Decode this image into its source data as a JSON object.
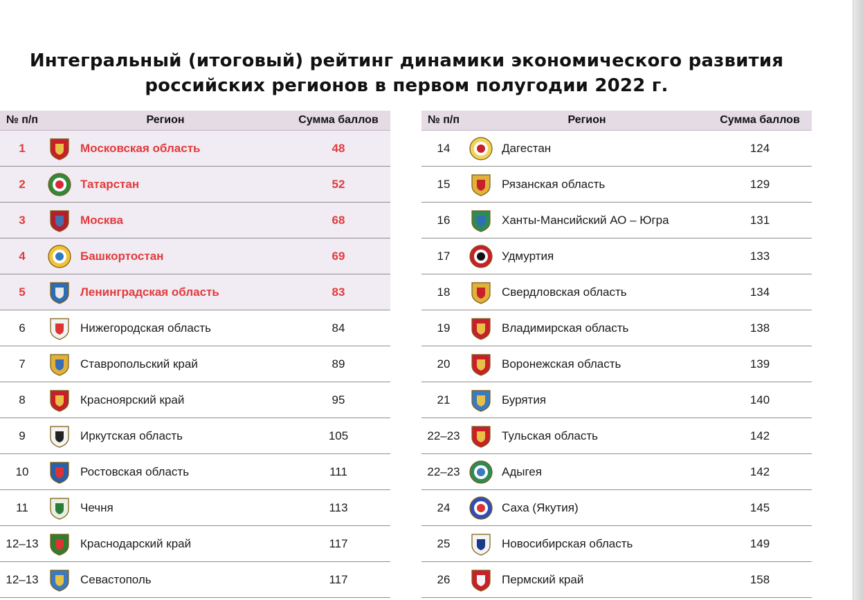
{
  "title": {
    "line1": "Интегральный (итоговый) рейтинг динамики экономического развития",
    "line2": "российских регионов в первом полугодии 2022 г."
  },
  "header": {
    "num": "№ п/п",
    "region": "Регион",
    "score": "Сумма баллов"
  },
  "colors": {
    "highlight_text": "#e23b3b",
    "highlight_bg": "#f1ebf3",
    "header_bg": "#e4dbe5"
  },
  "left_rows": [
    {
      "num": "1",
      "region": "Московская область",
      "score": "48",
      "top": true,
      "icon": "moscow-oblast-emblem-icon"
    },
    {
      "num": "2",
      "region": "Татарстан",
      "score": "52",
      "top": true,
      "icon": "tatarstan-emblem-icon"
    },
    {
      "num": "3",
      "region": "Москва",
      "score": "68",
      "top": true,
      "icon": "moscow-emblem-icon"
    },
    {
      "num": "4",
      "region": "Башкортостан",
      "score": "69",
      "top": true,
      "icon": "bashkortostan-emblem-icon"
    },
    {
      "num": "5",
      "region": "Ленинградская область",
      "score": "83",
      "top": true,
      "icon": "leningrad-oblast-emblem-icon"
    },
    {
      "num": "6",
      "region": "Нижегородская область",
      "score": "84",
      "top": false,
      "icon": "nizhny-novgorod-emblem-icon"
    },
    {
      "num": "7",
      "region": "Ставропольский край",
      "score": "89",
      "top": false,
      "icon": "stavropol-emblem-icon"
    },
    {
      "num": "8",
      "region": "Красноярский край",
      "score": "95",
      "top": false,
      "icon": "krasnoyarsk-emblem-icon"
    },
    {
      "num": "9",
      "region": "Иркутская область",
      "score": "105",
      "top": false,
      "icon": "irkutsk-emblem-icon"
    },
    {
      "num": "10",
      "region": "Ростовская область",
      "score": "111",
      "top": false,
      "icon": "rostov-emblem-icon"
    },
    {
      "num": "11",
      "region": "Чечня",
      "score": "113",
      "top": false,
      "icon": "chechnya-emblem-icon"
    },
    {
      "num": "12–13",
      "region": "Краснодарский край",
      "score": "117",
      "top": false,
      "icon": "krasnodar-emblem-icon"
    },
    {
      "num": "12–13",
      "region": "Севастополь",
      "score": "117",
      "top": false,
      "icon": "sevastopol-emblem-icon"
    }
  ],
  "right_rows": [
    {
      "num": "14",
      "region": "Дагестан",
      "score": "124",
      "icon": "dagestan-emblem-icon"
    },
    {
      "num": "15",
      "region": "Рязанская область",
      "score": "129",
      "icon": "ryazan-emblem-icon"
    },
    {
      "num": "16",
      "region": "Ханты-Мансийский АО – Югра",
      "score": "131",
      "icon": "khanty-mansi-emblem-icon"
    },
    {
      "num": "17",
      "region": "Удмуртия",
      "score": "133",
      "icon": "udmurtia-emblem-icon"
    },
    {
      "num": "18",
      "region": "Свердловская область",
      "score": "134",
      "icon": "sverdlovsk-emblem-icon"
    },
    {
      "num": "19",
      "region": "Владимирская область",
      "score": "138",
      "icon": "vladimir-emblem-icon"
    },
    {
      "num": "20",
      "region": "Воронежская область",
      "score": "139",
      "icon": "voronezh-emblem-icon"
    },
    {
      "num": "21",
      "region": "Бурятия",
      "score": "140",
      "icon": "buryatia-emblem-icon"
    },
    {
      "num": "22–23",
      "region": "Тульская область",
      "score": "142",
      "icon": "tula-emblem-icon"
    },
    {
      "num": "22–23",
      "region": "Адыгея",
      "score": "142",
      "icon": "adygea-emblem-icon"
    },
    {
      "num": "24",
      "region": "Саха (Якутия)",
      "score": "145",
      "icon": "yakutia-emblem-icon"
    },
    {
      "num": "25",
      "region": "Новосибирская область",
      "score": "149",
      "icon": "novosibirsk-emblem-icon"
    },
    {
      "num": "26",
      "region": "Пермский край",
      "score": "158",
      "icon": "perm-emblem-icon"
    }
  ]
}
